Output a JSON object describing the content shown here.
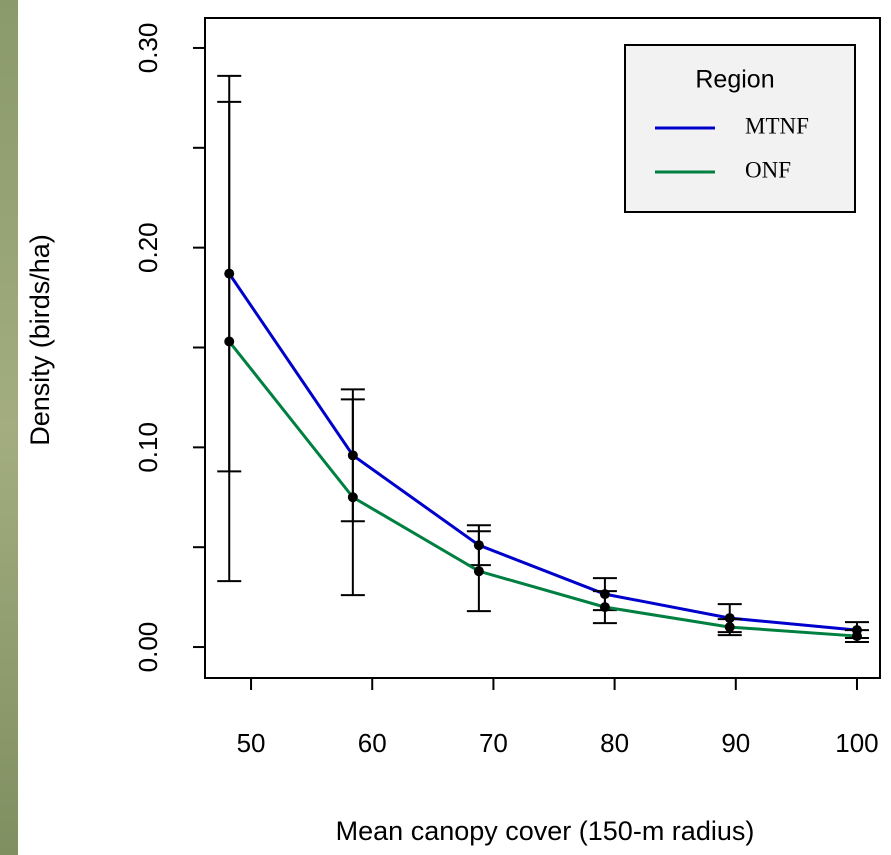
{
  "chart_data": {
    "type": "line",
    "xlabel": "Mean canopy cover (150-m radius)",
    "ylabel": "Density (birds/ha)",
    "x": [
      48.2,
      58.4,
      68.8,
      79.2,
      89.5,
      100
    ],
    "series": [
      {
        "name": "MTNF",
        "color": "#0000cc",
        "values": [
          0.187,
          0.096,
          0.051,
          0.0265,
          0.0145,
          0.0085
        ],
        "error": [
          0.099,
          0.033,
          0.01,
          0.008,
          0.007,
          0.004
        ]
      },
      {
        "name": "ONF",
        "color": "#008040",
        "values": [
          0.153,
          0.075,
          0.038,
          0.02,
          0.01,
          0.0055
        ],
        "error": [
          0.12,
          0.049,
          0.02,
          0.008,
          0.004,
          0.003
        ]
      }
    ],
    "xlim": [
      46.2,
      101.9
    ],
    "ylim": [
      -0.0155,
      0.315
    ],
    "xticks": [
      50,
      60,
      70,
      80,
      90,
      100
    ],
    "yticks": [
      {
        "value": 0,
        "label": "0.00"
      },
      {
        "value": 0.1,
        "label": "0.10"
      },
      {
        "value": 0.2,
        "label": "0.20"
      },
      {
        "value": 0.3,
        "label": "0.30"
      }
    ],
    "yticks_minor": [
      0.05,
      0.15,
      0.25
    ],
    "legend_title": "Region",
    "legend": "upper right"
  }
}
